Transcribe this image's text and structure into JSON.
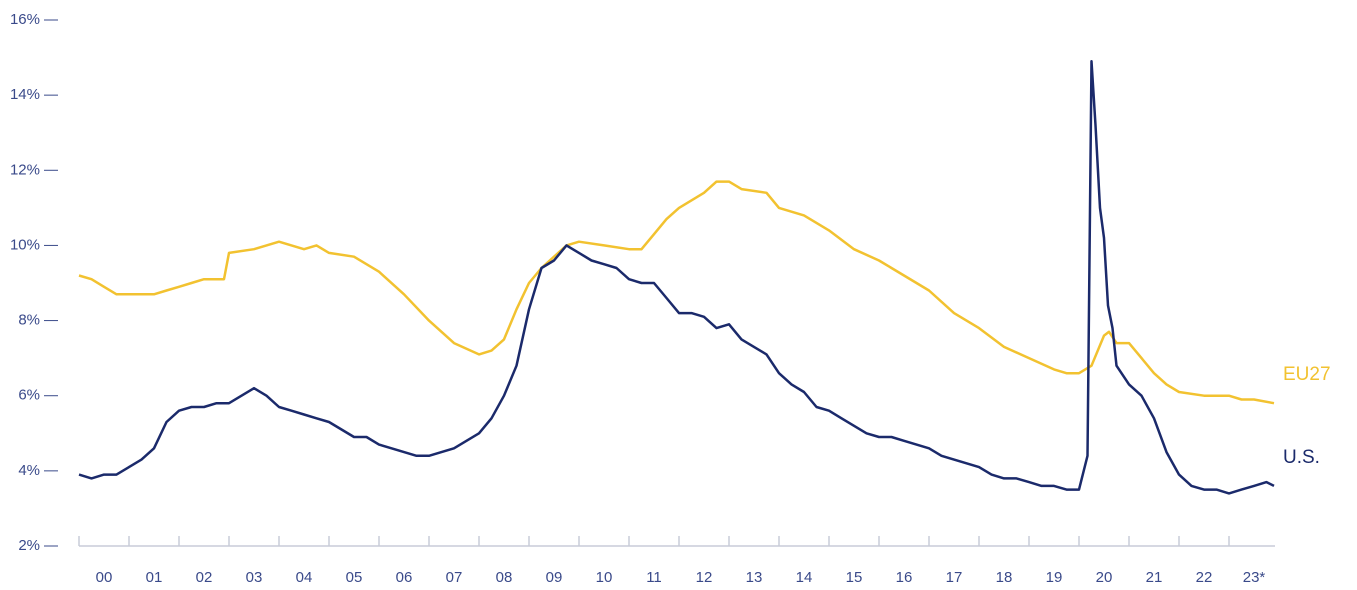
{
  "chart_data": {
    "type": "line",
    "xlim": [
      2000,
      2024
    ],
    "xticks": [
      {
        "value": 2000.5,
        "label": "00"
      },
      {
        "value": 2001.5,
        "label": "01"
      },
      {
        "value": 2002.5,
        "label": "02"
      },
      {
        "value": 2003.5,
        "label": "03"
      },
      {
        "value": 2004.5,
        "label": "04"
      },
      {
        "value": 2005.5,
        "label": "05"
      },
      {
        "value": 2006.5,
        "label": "06"
      },
      {
        "value": 2007.5,
        "label": "07"
      },
      {
        "value": 2008.5,
        "label": "08"
      },
      {
        "value": 2009.5,
        "label": "09"
      },
      {
        "value": 2010.5,
        "label": "10"
      },
      {
        "value": 2011.5,
        "label": "11"
      },
      {
        "value": 2012.5,
        "label": "12"
      },
      {
        "value": 2013.5,
        "label": "13"
      },
      {
        "value": 2014.5,
        "label": "14"
      },
      {
        "value": 2015.5,
        "label": "15"
      },
      {
        "value": 2016.5,
        "label": "16"
      },
      {
        "value": 2017.5,
        "label": "17"
      },
      {
        "value": 2018.5,
        "label": "18"
      },
      {
        "value": 2019.5,
        "label": "19"
      },
      {
        "value": 2020.5,
        "label": "20"
      },
      {
        "value": 2021.5,
        "label": "21"
      },
      {
        "value": 2022.5,
        "label": "22"
      },
      {
        "value": 2023.5,
        "label": "23*"
      }
    ],
    "ylim": [
      2,
      16
    ],
    "yticks": [
      {
        "value": 2,
        "label": "2%"
      },
      {
        "value": 4,
        "label": "4%"
      },
      {
        "value": 6,
        "label": "6%"
      },
      {
        "value": 8,
        "label": "8%"
      },
      {
        "value": 10,
        "label": "10%"
      },
      {
        "value": 12,
        "label": "12%"
      },
      {
        "value": 14,
        "label": "14%"
      },
      {
        "value": 16,
        "label": "16%"
      }
    ],
    "series": [
      {
        "name": "EU27",
        "color": "#f2c230",
        "x": [
          2000.0,
          2000.25,
          2000.5,
          2000.75,
          2001.0,
          2001.5,
          2001.75,
          2002.0,
          2002.25,
          2002.5,
          2002.9,
          2003.0,
          2003.5,
          2004.0,
          2004.5,
          2004.75,
          2005.0,
          2005.5,
          2006.0,
          2006.5,
          2007.0,
          2007.5,
          2008.0,
          2008.25,
          2008.5,
          2008.75,
          2009.0,
          2009.25,
          2009.5,
          2009.75,
          2010.0,
          2010.5,
          2011.0,
          2011.25,
          2011.5,
          2011.75,
          2012.0,
          2012.5,
          2012.75,
          2013.0,
          2013.25,
          2013.75,
          2014.0,
          2014.5,
          2015.0,
          2015.5,
          2016.0,
          2016.5,
          2017.0,
          2017.5,
          2018.0,
          2018.5,
          2019.0,
          2019.5,
          2019.75,
          2020.0,
          2020.25,
          2020.5,
          2020.6,
          2020.75,
          2021.0,
          2021.25,
          2021.5,
          2021.75,
          2022.0,
          2022.5,
          2023.0,
          2023.25,
          2023.5,
          2023.9
        ],
        "values": [
          9.2,
          9.1,
          8.9,
          8.7,
          8.7,
          8.7,
          8.8,
          8.9,
          9.0,
          9.1,
          9.1,
          9.8,
          9.9,
          10.1,
          9.9,
          10.0,
          9.8,
          9.7,
          9.3,
          8.7,
          8.0,
          7.4,
          7.1,
          7.2,
          7.5,
          8.3,
          9.0,
          9.4,
          9.7,
          10.0,
          10.1,
          10.0,
          9.9,
          9.9,
          10.3,
          10.7,
          11.0,
          11.4,
          11.7,
          11.7,
          11.5,
          11.4,
          11.0,
          10.8,
          10.4,
          9.9,
          9.6,
          9.2,
          8.8,
          8.2,
          7.8,
          7.3,
          7.0,
          6.7,
          6.6,
          6.6,
          6.8,
          7.6,
          7.7,
          7.4,
          7.4,
          7.0,
          6.6,
          6.3,
          6.1,
          6.0,
          6.0,
          5.9,
          5.9,
          5.8
        ]
      },
      {
        "name": "U.S.",
        "color": "#1b2a6b",
        "x": [
          2000.0,
          2000.25,
          2000.5,
          2000.75,
          2001.0,
          2001.25,
          2001.5,
          2001.75,
          2002.0,
          2002.25,
          2002.5,
          2002.75,
          2003.0,
          2003.5,
          2003.75,
          2004.0,
          2004.25,
          2004.5,
          2004.75,
          2005.0,
          2005.25,
          2005.5,
          2005.75,
          2006.0,
          2006.25,
          2006.5,
          2006.75,
          2007.0,
          2007.25,
          2007.5,
          2007.75,
          2008.0,
          2008.25,
          2008.5,
          2008.75,
          2009.0,
          2009.25,
          2009.5,
          2009.75,
          2010.0,
          2010.25,
          2010.5,
          2010.75,
          2011.0,
          2011.25,
          2011.5,
          2011.75,
          2012.0,
          2012.25,
          2012.5,
          2012.75,
          2013.0,
          2013.25,
          2013.5,
          2013.75,
          2014.0,
          2014.25,
          2014.5,
          2014.75,
          2015.0,
          2015.25,
          2015.5,
          2015.75,
          2016.0,
          2016.25,
          2016.5,
          2016.75,
          2017.0,
          2017.25,
          2017.5,
          2017.75,
          2018.0,
          2018.25,
          2018.5,
          2018.75,
          2019.0,
          2019.25,
          2019.5,
          2019.75,
          2020.0,
          2020.17,
          2020.25,
          2020.33,
          2020.42,
          2020.5,
          2020.58,
          2020.67,
          2020.75,
          2021.0,
          2021.25,
          2021.5,
          2021.75,
          2022.0,
          2022.25,
          2022.5,
          2022.75,
          2023.0,
          2023.25,
          2023.5,
          2023.75,
          2023.9
        ],
        "values": [
          3.9,
          3.8,
          3.9,
          3.9,
          4.1,
          4.3,
          4.6,
          5.3,
          5.6,
          5.7,
          5.7,
          5.8,
          5.8,
          6.2,
          6.0,
          5.7,
          5.6,
          5.5,
          5.4,
          5.3,
          5.1,
          4.9,
          4.9,
          4.7,
          4.6,
          4.5,
          4.4,
          4.4,
          4.5,
          4.6,
          4.8,
          5.0,
          5.4,
          6.0,
          6.8,
          8.3,
          9.4,
          9.6,
          10.0,
          9.8,
          9.6,
          9.5,
          9.4,
          9.1,
          9.0,
          9.0,
          8.6,
          8.2,
          8.2,
          8.1,
          7.8,
          7.9,
          7.5,
          7.3,
          7.1,
          6.6,
          6.3,
          6.1,
          5.7,
          5.6,
          5.4,
          5.2,
          5.0,
          4.9,
          4.9,
          4.8,
          4.7,
          4.6,
          4.4,
          4.3,
          4.2,
          4.1,
          3.9,
          3.8,
          3.8,
          3.7,
          3.6,
          3.6,
          3.5,
          3.5,
          4.4,
          14.9,
          13.2,
          11.0,
          10.2,
          8.4,
          7.8,
          6.8,
          6.3,
          6.0,
          5.4,
          4.5,
          3.9,
          3.6,
          3.5,
          3.5,
          3.4,
          3.5,
          3.6,
          3.7,
          3.6
        ]
      }
    ]
  }
}
